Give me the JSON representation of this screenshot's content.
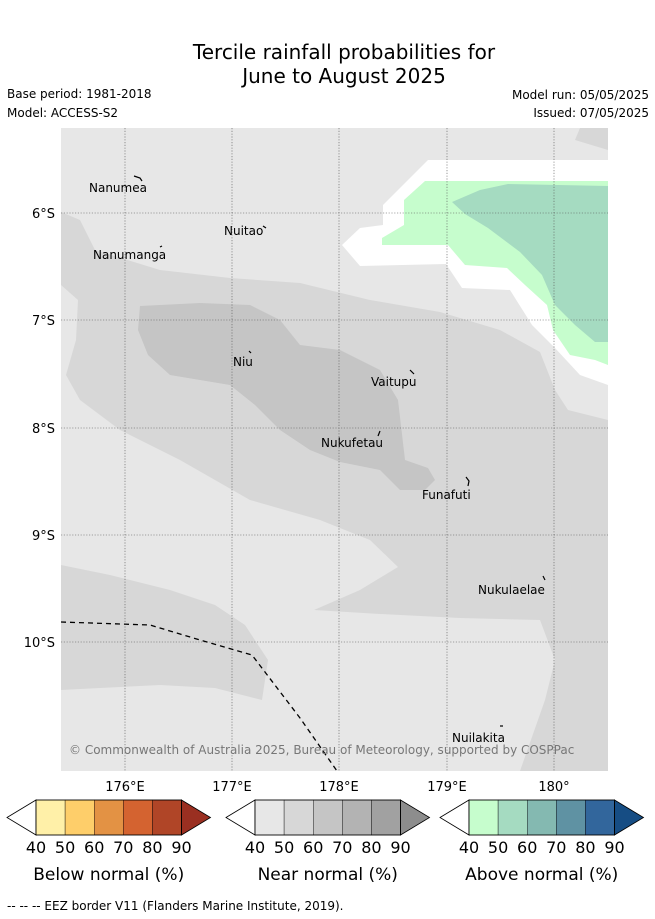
{
  "title_line1": "Tercile rainfall probabilities for",
  "title_line2": "June to August 2025",
  "base_period": "Base period: 1981-2018",
  "model": "Model: ACCESS-S2",
  "model_run": "Model run: 05/05/2025",
  "issued": "Issued: 07/05/2025",
  "lon_labels": [
    "176°E",
    "177°E",
    "178°E",
    "179°E",
    "180°"
  ],
  "lat_labels": [
    "6°S",
    "7°S",
    "8°S",
    "9°S",
    "10°S"
  ],
  "islands": [
    "Nanumea",
    "Nuitao",
    "Nanumanga",
    "Niu",
    "Vaitupu",
    "Nukufetau",
    "Funafuti",
    "Nukulaelae",
    "Nuilakita"
  ],
  "copyright": "© Commonwealth of Australia 2025, Bureau of Meteorology, supported by COSPPac",
  "colorbars": [
    {
      "label": "Below normal (%)",
      "ticks": [
        "40",
        "50",
        "60",
        "70",
        "80",
        "90"
      ],
      "colors": [
        "#fff0a8",
        "#fece6a",
        "#e39244",
        "#d46330",
        "#b04527",
        "#9a2f21"
      ]
    },
    {
      "label": "Near normal (%)",
      "ticks": [
        "40",
        "50",
        "60",
        "70",
        "80",
        "90"
      ],
      "colors": [
        "#e7e7e7",
        "#d7d7d7",
        "#c5c5c5",
        "#b3b3b3",
        "#a1a1a1",
        "#8d8d8d"
      ]
    },
    {
      "label": "Above normal (%)",
      "ticks": [
        "40",
        "50",
        "60",
        "70",
        "80",
        "90"
      ],
      "colors": [
        "#c6fdcd",
        "#a5dbc1",
        "#84b9b1",
        "#5f92a3",
        "#32669c",
        "#164d84"
      ]
    }
  ],
  "footnote": "--  --  -- EEZ border V11 (Flanders Marine Institute, 2019)."
}
